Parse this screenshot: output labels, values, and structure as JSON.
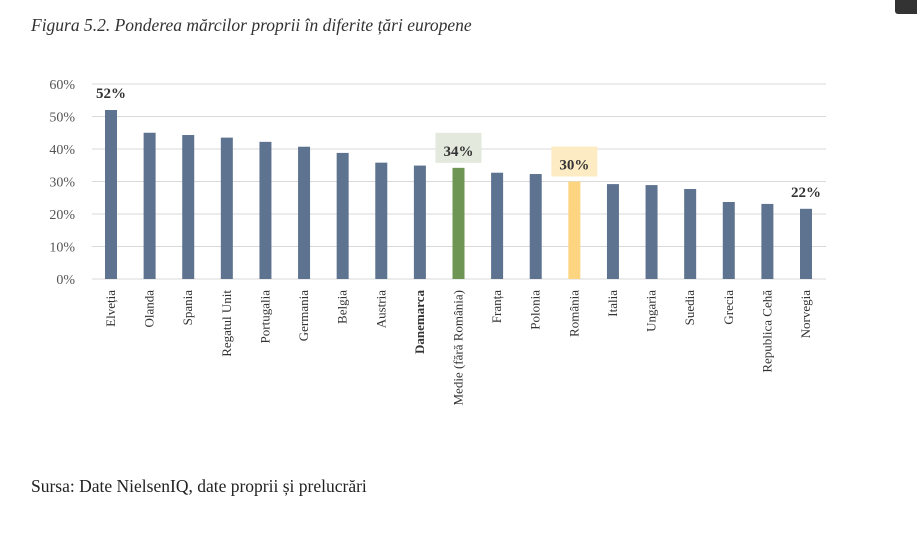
{
  "figure_title": "Figura 5.2. Ponderea mărcilor proprii în diferite țări europene",
  "source": "Sursa: Date NielsenIQ, date proprii și prelucrări",
  "chart_data": {
    "type": "bar",
    "title": "",
    "xlabel": "",
    "ylabel": "",
    "ylim": [
      0,
      60
    ],
    "yticks": [
      "0%",
      "10%",
      "20%",
      "30%",
      "40%",
      "50%",
      "60%"
    ],
    "grid": true,
    "categories": [
      "Elveția",
      "Olanda",
      "Spania",
      "Regatul Unit",
      "Portugalia",
      "Germania",
      "Belgia",
      "Austria",
      "Danemarca",
      "Medie (fără România)",
      "Franța",
      "Polonia",
      "România",
      "Italia",
      "Ungaria",
      "Suedia",
      "Grecia",
      "Republica Cehă",
      "Norvegia"
    ],
    "values": [
      52,
      45,
      44.3,
      43.5,
      42.2,
      40.7,
      38.8,
      35.8,
      34.9,
      34.2,
      32.7,
      32.3,
      30,
      29.2,
      28.9,
      27.7,
      23.7,
      23.1,
      21.6
    ],
    "data_labels": [
      {
        "index": 0,
        "text": "52%"
      },
      {
        "index": 9,
        "text": "34%",
        "background": "#e3e9dd"
      },
      {
        "index": 12,
        "text": "30%",
        "background": "#fdebc4"
      },
      {
        "index": 18,
        "text": "22%"
      }
    ],
    "colors": {
      "default": "#5e738f",
      "highlight_average": "#6e9553",
      "highlight_romania": "#fdd47f",
      "grid": "#d9d9d9"
    }
  }
}
